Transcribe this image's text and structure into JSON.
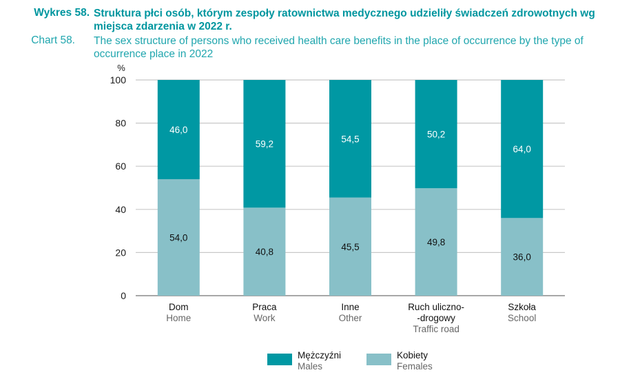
{
  "header": {
    "pl_label": "Wykres 58.",
    "pl_title": "Struktura płci osób, którym zespoły ratownictwa medycznego udzieliły świadczeń zdrowotnych wg miejsca zdarzenia w 2022 r.",
    "en_label": "Chart 58.",
    "en_title": "The sex structure of persons who received health care benefits in the place of occurrence by the type of occurrence place in 2022"
  },
  "chart_data": {
    "type": "bar",
    "stacked": true,
    "title": "Struktura płci osób, którym zespoły ratownictwa medycznego udzieliły świadczeń zdrowotnych wg miejsca zdarzenia w 2022 r.",
    "subtitle": "The sex structure of persons who received health care benefits in the place of occurrence by the type of occurrence place in 2022",
    "ylabel": "%",
    "xlabel": "",
    "ylim": [
      0,
      100
    ],
    "yticks": [
      0,
      20,
      40,
      60,
      80,
      100
    ],
    "grid": true,
    "categories": [
      {
        "pl": [
          "Dom"
        ],
        "en": [
          "Home"
        ]
      },
      {
        "pl": [
          "Praca"
        ],
        "en": [
          "Work"
        ]
      },
      {
        "pl": [
          "Inne"
        ],
        "en": [
          "Other"
        ]
      },
      {
        "pl": [
          "Ruch uliczno-",
          "-drogowy"
        ],
        "en": [
          "Traffic road"
        ]
      },
      {
        "pl": [
          "Szkoła"
        ],
        "en": [
          "School"
        ]
      }
    ],
    "series": [
      {
        "name": "Kobiety",
        "name_en": "Females",
        "color": "#88c0c8",
        "values": [
          54.0,
          40.8,
          45.5,
          49.8,
          36.0
        ],
        "labels": [
          "54,0",
          "40,8",
          "45,5",
          "49,8",
          "36,0"
        ]
      },
      {
        "name": "Mężczyźni",
        "name_en": "Males",
        "color": "#0098a3",
        "values": [
          46.0,
          59.2,
          54.5,
          50.2,
          64.0
        ],
        "labels": [
          "46,0",
          "59,2",
          "54,5",
          "50,2",
          "64,0"
        ]
      }
    ],
    "legend_position": "bottom-center",
    "legend": [
      {
        "pl": "Mężczyźni",
        "en": "Males",
        "color": "#0098a3"
      },
      {
        "pl": "Kobiety",
        "en": "Females",
        "color": "#88c0c8"
      }
    ]
  }
}
